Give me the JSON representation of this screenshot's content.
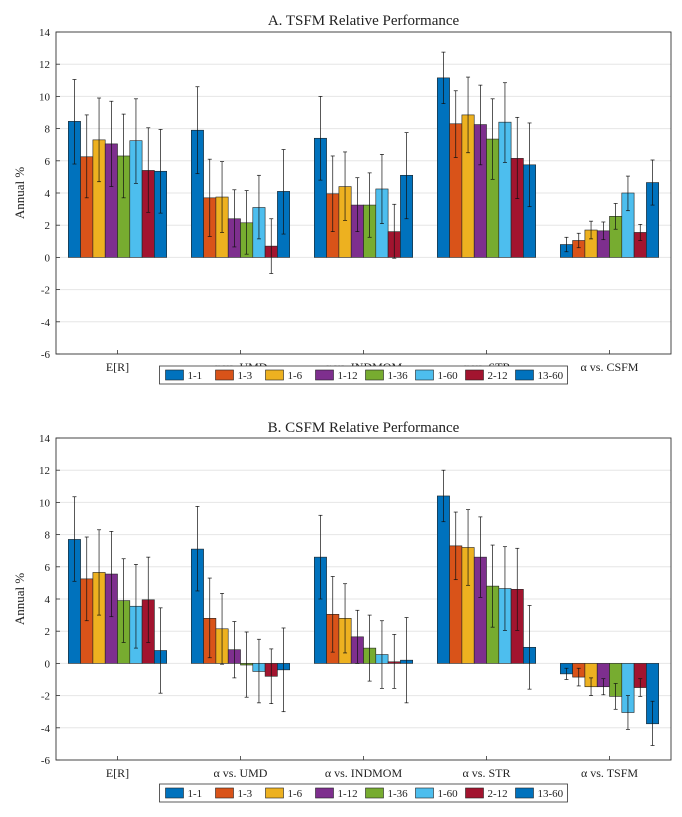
{
  "chart_data": [
    {
      "type": "bar",
      "title": "A. TSFM Relative Performance",
      "xlabel": "",
      "ylabel": "Annual %",
      "ylim": [
        -6,
        14
      ],
      "yticks": [
        -6,
        -4,
        -2,
        0,
        2,
        4,
        6,
        8,
        10,
        12,
        14
      ],
      "grid": true,
      "legend_position": "bottom",
      "categories": [
        "E[R]",
        "α vs. UMD",
        "α vs. INDMOM",
        "α vs. STR",
        "α vs. CSFM"
      ],
      "series": [
        {
          "name": "1-1",
          "color": "#0072BD",
          "values": [
            8.45,
            7.9,
            7.4,
            11.15,
            0.8
          ],
          "err_low": [
            5.8,
            5.2,
            4.8,
            9.55,
            0.35
          ],
          "err_high": [
            11.05,
            10.6,
            10.0,
            12.75,
            1.25
          ]
        },
        {
          "name": "1-3",
          "color": "#D95319",
          "values": [
            6.25,
            3.7,
            3.95,
            8.3,
            1.05
          ],
          "err_low": [
            3.7,
            1.3,
            1.6,
            6.2,
            0.6
          ],
          "err_high": [
            8.85,
            6.1,
            6.3,
            10.35,
            1.5
          ]
        },
        {
          "name": "1-6",
          "color": "#EDB120",
          "values": [
            7.3,
            3.75,
            4.4,
            8.85,
            1.7
          ],
          "err_low": [
            4.7,
            1.55,
            2.3,
            6.5,
            1.15
          ],
          "err_high": [
            9.9,
            5.95,
            6.55,
            11.2,
            2.25
          ]
        },
        {
          "name": "1-12",
          "color": "#7E2F8E",
          "values": [
            7.05,
            2.4,
            3.25,
            8.25,
            1.65
          ],
          "err_low": [
            4.4,
            0.65,
            1.6,
            5.75,
            1.1
          ],
          "err_high": [
            9.7,
            4.2,
            4.95,
            10.7,
            2.2
          ]
        },
        {
          "name": "1-36",
          "color": "#77AC30",
          "values": [
            6.3,
            2.15,
            3.25,
            7.35,
            2.55
          ],
          "err_low": [
            3.7,
            0.2,
            1.25,
            4.85,
            1.75
          ],
          "err_high": [
            8.9,
            4.15,
            5.25,
            9.85,
            3.35
          ]
        },
        {
          "name": "1-60",
          "color": "#4DBEEE",
          "values": [
            7.25,
            3.1,
            4.25,
            8.4,
            4.0
          ],
          "err_low": [
            4.6,
            1.15,
            2.1,
            5.9,
            2.9
          ],
          "err_high": [
            9.85,
            5.1,
            6.4,
            10.85,
            5.05
          ]
        },
        {
          "name": "2-12",
          "color": "#A2142F",
          "values": [
            5.4,
            0.7,
            1.6,
            6.15,
            1.55
          ],
          "err_low": [
            2.8,
            -1.0,
            -0.05,
            3.65,
            1.05
          ],
          "err_high": [
            8.05,
            2.4,
            3.3,
            8.7,
            2.05
          ]
        },
        {
          "name": "13-60",
          "color": "#0072BD",
          "values": [
            5.35,
            4.1,
            5.1,
            5.75,
            4.65
          ],
          "err_low": [
            2.75,
            1.45,
            2.4,
            3.15,
            3.25
          ],
          "err_high": [
            7.95,
            6.7,
            7.75,
            8.35,
            6.05
          ]
        }
      ]
    },
    {
      "type": "bar",
      "title": "B. CSFM Relative Performance",
      "xlabel": "",
      "ylabel": "Annual %",
      "ylim": [
        -6,
        14
      ],
      "yticks": [
        -6,
        -4,
        -2,
        0,
        2,
        4,
        6,
        8,
        10,
        12,
        14
      ],
      "grid": true,
      "legend_position": "bottom",
      "categories": [
        "E[R]",
        "α vs. UMD",
        "α vs. INDMOM",
        "α vs. STR",
        "α vs. TSFM"
      ],
      "series": [
        {
          "name": "1-1",
          "color": "#0072BD",
          "values": [
            7.7,
            7.1,
            6.6,
            10.4,
            -0.65
          ],
          "err_low": [
            5.1,
            4.5,
            4.0,
            8.8,
            -1.0
          ],
          "err_high": [
            10.35,
            9.75,
            9.2,
            12.0,
            -0.3
          ]
        },
        {
          "name": "1-3",
          "color": "#D95319",
          "values": [
            5.25,
            2.8,
            3.05,
            7.3,
            -0.85
          ],
          "err_low": [
            2.65,
            0.35,
            0.7,
            5.2,
            -1.4
          ],
          "err_high": [
            7.85,
            5.3,
            5.4,
            9.4,
            -0.3
          ]
        },
        {
          "name": "1-6",
          "color": "#EDB120",
          "values": [
            5.65,
            2.15,
            2.8,
            7.2,
            -1.45
          ],
          "err_low": [
            3.0,
            -0.05,
            0.65,
            4.85,
            -2.0
          ],
          "err_high": [
            8.3,
            4.35,
            4.95,
            9.55,
            -0.9
          ]
        },
        {
          "name": "1-12",
          "color": "#7E2F8E",
          "values": [
            5.55,
            0.85,
            1.65,
            6.6,
            -1.45
          ],
          "err_low": [
            2.9,
            -0.9,
            0.0,
            4.1,
            -1.95
          ],
          "err_high": [
            8.2,
            2.6,
            3.3,
            9.1,
            -0.95
          ]
        },
        {
          "name": "1-36",
          "color": "#77AC30",
          "values": [
            3.9,
            -0.1,
            0.95,
            4.8,
            -2.05
          ],
          "err_low": [
            1.3,
            -2.1,
            -1.1,
            2.25,
            -2.85
          ],
          "err_high": [
            6.5,
            1.95,
            3.0,
            7.35,
            -1.25
          ]
        },
        {
          "name": "1-60",
          "color": "#4DBEEE",
          "values": [
            3.55,
            -0.5,
            0.55,
            4.65,
            -3.05
          ],
          "err_low": [
            0.95,
            -2.45,
            -1.55,
            2.05,
            -4.1
          ],
          "err_high": [
            6.15,
            1.5,
            2.65,
            7.25,
            -2.0
          ]
        },
        {
          "name": "2-12",
          "color": "#A2142F",
          "values": [
            3.95,
            -0.8,
            0.1,
            4.6,
            -1.5
          ],
          "err_low": [
            1.3,
            -2.5,
            -1.55,
            2.05,
            -2.05
          ],
          "err_high": [
            6.6,
            0.9,
            1.8,
            7.15,
            -0.95
          ]
        },
        {
          "name": "13-60",
          "color": "#0072BD",
          "values": [
            0.8,
            -0.4,
            0.2,
            1.0,
            -3.75
          ],
          "err_low": [
            -1.85,
            -3.0,
            -2.45,
            -1.6,
            -5.1
          ],
          "err_high": [
            3.45,
            2.2,
            2.85,
            3.6,
            -2.35
          ]
        }
      ]
    }
  ]
}
